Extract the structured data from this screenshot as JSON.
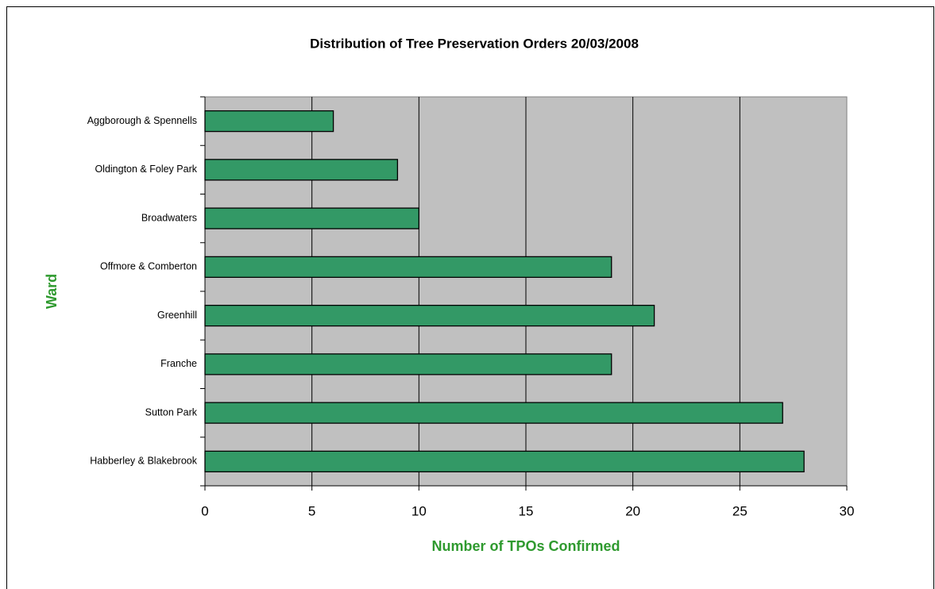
{
  "chart_data": {
    "type": "barh",
    "title": "Distribution of Tree Preservation Orders 20/03/2008",
    "x_label": "Number of TPOs Confirmed",
    "y_label": "Ward",
    "categories": [
      "Aggborough & Spennells",
      "Oldington & Foley Park",
      "Broadwaters",
      "Offmore & Comberton",
      "Greenhill",
      "Franche",
      "Sutton Park",
      "Habberley & Blakebrook"
    ],
    "values": [
      6,
      9,
      10,
      19,
      21,
      19,
      27,
      28
    ],
    "color": "#339966",
    "xlim": [
      0,
      30
    ],
    "xticks": [
      0,
      5,
      10,
      15,
      20,
      25,
      30
    ],
    "grid": true
  }
}
